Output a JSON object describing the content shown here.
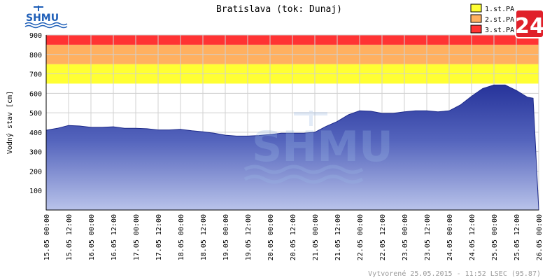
{
  "logo": {
    "text": "SHMU",
    "color": "#1f5fb8"
  },
  "corner_badge": {
    "text": "24",
    "bg": "#e0202a"
  },
  "watermark": {
    "text": "SHMU"
  },
  "chart_data": {
    "type": "area",
    "title": "Bratislava (tok: Dunaj)",
    "xlabel": "",
    "ylabel": "Vodný stav [cm]",
    "ylim": [
      0,
      900
    ],
    "yticks": [
      100,
      200,
      300,
      400,
      500,
      600,
      700,
      800,
      900
    ],
    "xticks": [
      "15.05 00:00",
      "15.05 12:00",
      "16.05 00:00",
      "16.05 12:00",
      "17.05 00:00",
      "17.05 12:00",
      "18.05 00:00",
      "18.05 12:00",
      "19.05 00:00",
      "19.05 12:00",
      "20.05 00:00",
      "20.05 12:00",
      "21.05 00:00",
      "21.05 12:00",
      "22.05 00:00",
      "22.05 12:00",
      "23.05 00:00",
      "23.05 12:00",
      "24.05 00:00",
      "24.05 12:00",
      "25.05 00:00",
      "25.05 12:00",
      "26.05 00:00"
    ],
    "grid": true,
    "bands": [
      {
        "name": "1.st.PA",
        "from": 650,
        "to": 750,
        "color": "#ffff33"
      },
      {
        "name": "2.st.PA",
        "from": 750,
        "to": 850,
        "color": "#ffb060"
      },
      {
        "name": "3.st.PA",
        "from": 850,
        "to": 900,
        "color": "#ff3333"
      }
    ],
    "legend": "top-right",
    "series": [
      {
        "x_hours": [
          0,
          6,
          12,
          18,
          24,
          30,
          36,
          42,
          48,
          54,
          60,
          66,
          72,
          78,
          84,
          90,
          96,
          102,
          108,
          114,
          120,
          126,
          132,
          138,
          144,
          150,
          156,
          162,
          168,
          174,
          180,
          186,
          192,
          198,
          204,
          210,
          216,
          222,
          228,
          234,
          240,
          246,
          252,
          258,
          261,
          264
        ],
        "values": [
          410,
          420,
          435,
          432,
          425,
          425,
          428,
          420,
          420,
          418,
          412,
          412,
          415,
          408,
          402,
          395,
          385,
          380,
          380,
          383,
          388,
          395,
          395,
          395,
          400,
          430,
          455,
          490,
          510,
          508,
          497,
          497,
          505,
          510,
          510,
          505,
          510,
          540,
          585,
          625,
          643,
          643,
          615,
          580,
          575,
          3
        ]
      }
    ],
    "footer": "Vytvorené 25.05.2015 - 11:52 LSEC (95.87)"
  }
}
